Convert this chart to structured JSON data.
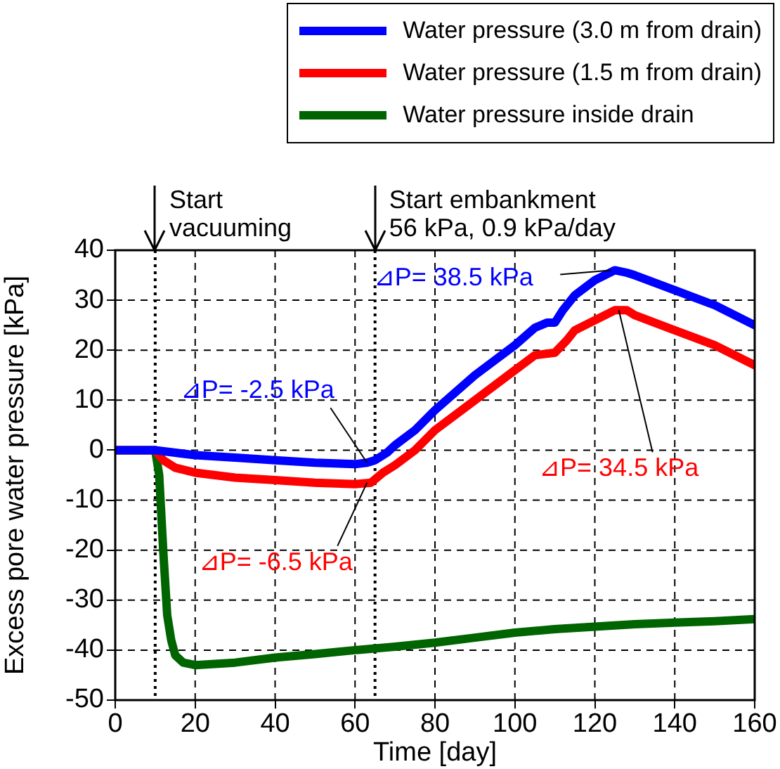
{
  "chart_data": {
    "type": "line",
    "xlabel": "Time [day]",
    "ylabel": "Excess pore water pressure [kPa]",
    "xlim": [
      0,
      160
    ],
    "xticks": [
      0,
      20,
      40,
      60,
      80,
      100,
      120,
      140,
      160
    ],
    "ylim": [
      -50,
      40
    ],
    "yticks": [
      -50,
      -40,
      -30,
      -20,
      -10,
      0,
      10,
      20,
      30,
      40
    ],
    "grid": true,
    "legend": "top right",
    "marker": "none",
    "line_style": "solid",
    "series": [
      {
        "name": "Water pressure (3.0 m from drain)",
        "color": "#0000ff",
        "x": [
          0,
          10,
          15,
          20,
          30,
          40,
          50,
          60,
          63,
          65,
          68,
          70,
          75,
          80,
          90,
          100,
          105,
          108,
          110,
          112,
          115,
          120,
          125,
          128,
          130,
          140,
          150,
          160
        ],
        "values": [
          0,
          0,
          -0.5,
          -1,
          -1.5,
          -2,
          -2.5,
          -2.8,
          -2.5,
          -2,
          -0.5,
          1,
          4,
          8,
          15,
          21,
          24.5,
          25.5,
          25.5,
          28,
          31,
          34,
          36,
          35.5,
          35,
          32,
          29,
          25
        ]
      },
      {
        "name": "Water pressure (1.5 m from drain)",
        "color": "#ff0000",
        "x": [
          0,
          10,
          12,
          15,
          20,
          30,
          40,
          50,
          60,
          64,
          67,
          70,
          75,
          80,
          90,
          100,
          105,
          110,
          113,
          115,
          120,
          125,
          128,
          130,
          140,
          150,
          160
        ],
        "values": [
          0,
          0,
          -2,
          -3.5,
          -4.5,
          -5.5,
          -6,
          -6.5,
          -6.8,
          -6.5,
          -4.5,
          -3,
          0,
          4,
          10,
          16,
          19,
          19.5,
          22,
          24,
          26,
          28,
          28,
          27,
          24,
          21,
          17
        ]
      },
      {
        "name": "Water pressure inside drain",
        "color": "#006400",
        "x": [
          0,
          10,
          11,
          12,
          13,
          14,
          15,
          17,
          20,
          30,
          40,
          50,
          60,
          70,
          80,
          90,
          100,
          110,
          120,
          130,
          140,
          150,
          160
        ],
        "values": [
          0,
          0,
          -5,
          -20,
          -33,
          -38,
          -41,
          -42.5,
          -43,
          -42.5,
          -41.5,
          -40.8,
          -40,
          -39.3,
          -38.5,
          -37.5,
          -36.5,
          -35.8,
          -35.3,
          -34.8,
          -34.5,
          -34.2,
          -33.8
        ]
      }
    ],
    "ref_lines": [
      {
        "axis": "x",
        "value": 10,
        "label": "Start\nvacuuming",
        "line_style": "dotted"
      },
      {
        "axis": "x",
        "value": 65,
        "label": "Start embankment\n56 kPa, 0.9 kPa/day",
        "line_style": "dotted"
      }
    ],
    "annotations": [
      {
        "text": "⊿P= 38.5 kPa",
        "x": 124,
        "y": 36
      },
      {
        "text": "⊿P= -2.5 kPa",
        "x": 63,
        "y": -2.5
      },
      {
        "text": "⊿P= -6.5 kPa",
        "x": 63,
        "y": -6.5
      },
      {
        "text": "⊿P= 34.5 kPa",
        "x": 126,
        "y": 28
      }
    ]
  }
}
